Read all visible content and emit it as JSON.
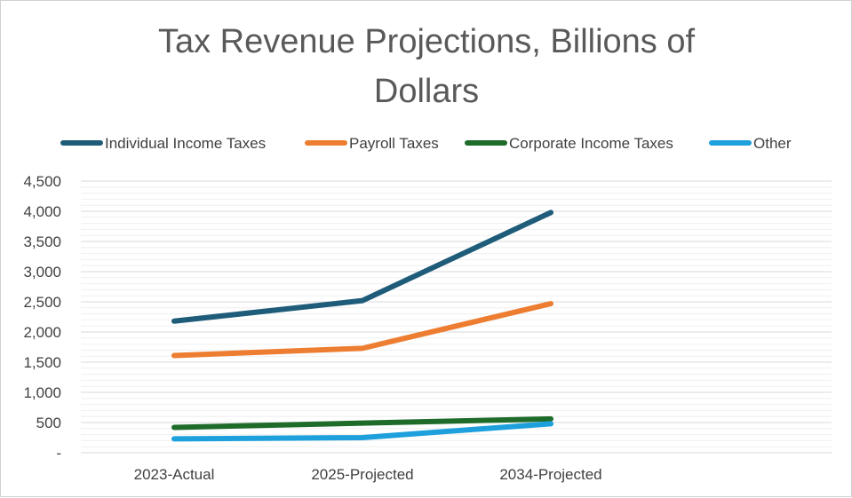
{
  "chart_data": {
    "type": "line",
    "title": "Tax Revenue Projections, Billions of Dollars",
    "title_lines": [
      "Tax Revenue Projections, Billions of",
      "Dollars"
    ],
    "categories": [
      "2023-Actual",
      "2025-Projected",
      "2034-Projected"
    ],
    "y_ticks": [
      "-",
      "500",
      "1,000",
      "1,500",
      "2,000",
      "2,500",
      "3,000",
      "3,500",
      "4,000",
      "4,500"
    ],
    "ylim": [
      0,
      4500
    ],
    "grid": true,
    "legend_position": "top",
    "series": [
      {
        "name": "Individual Income Taxes",
        "color": "#1f5c7a",
        "values": [
          2180,
          2520,
          3980
        ]
      },
      {
        "name": "Payroll Taxes",
        "color": "#ed7d31",
        "values": [
          1610,
          1730,
          2470
        ]
      },
      {
        "name": "Corporate Income Taxes",
        "color": "#1e6b2a",
        "values": [
          420,
          490,
          560
        ]
      },
      {
        "name": "Other",
        "color": "#1ea0dc",
        "values": [
          230,
          250,
          480
        ]
      }
    ]
  }
}
